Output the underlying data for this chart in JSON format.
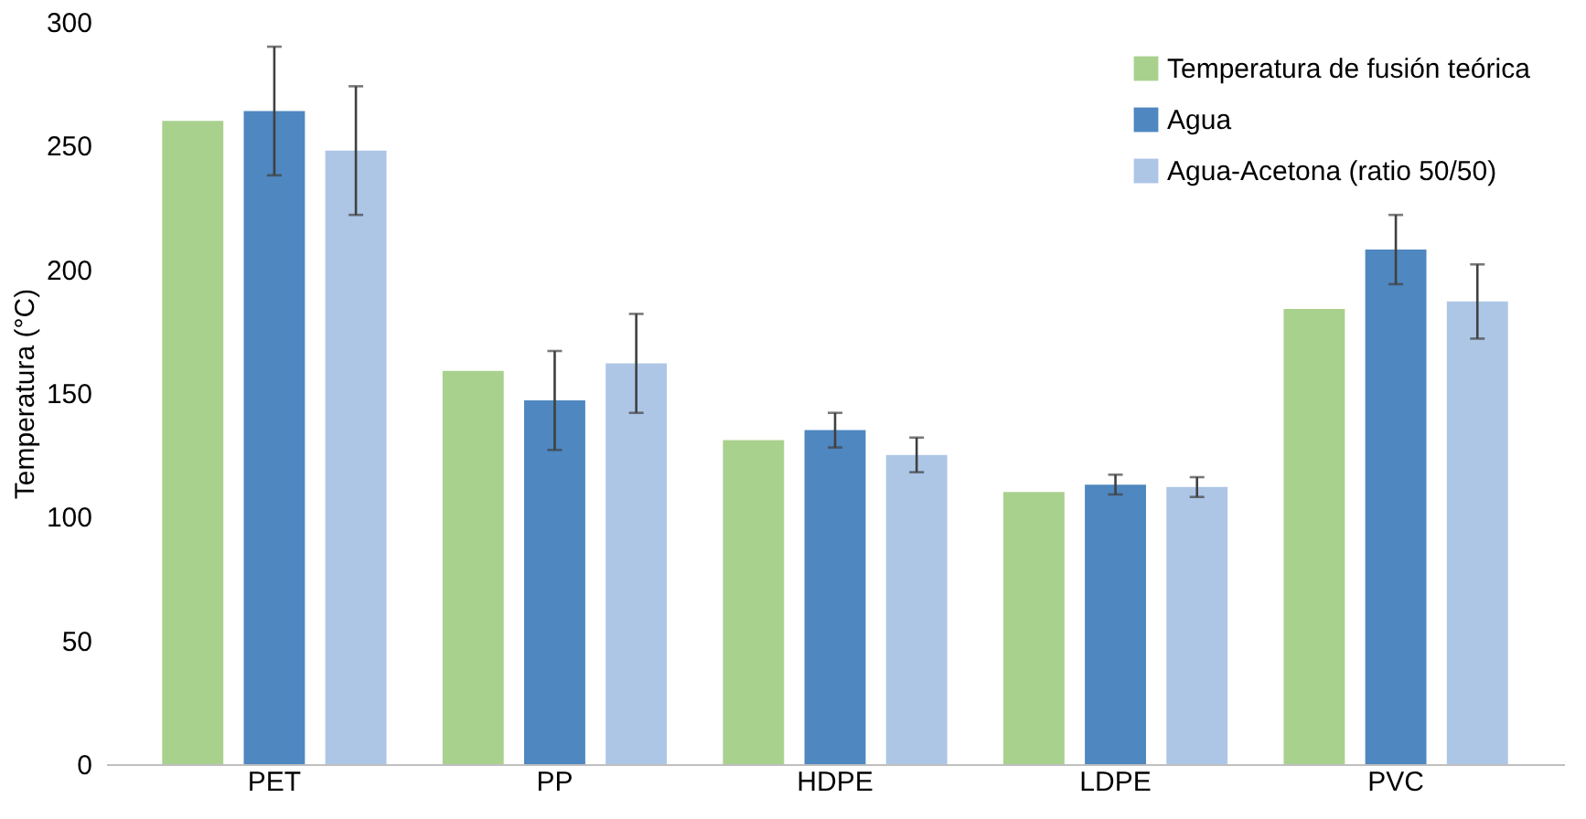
{
  "chart_data": {
    "type": "bar",
    "ylabel": "Temperatura (°C)",
    "categories": [
      "PET",
      "PP",
      "HDPE",
      "LDPE",
      "PVC"
    ],
    "series": [
      {
        "name": "Temperatura de fusión teórica",
        "color": "#a9d18e",
        "values": [
          260,
          159,
          131,
          110,
          184
        ]
      },
      {
        "name": "Agua",
        "color": "#4f87c0",
        "values": [
          264,
          147,
          135,
          113,
          208
        ],
        "errors": [
          26,
          20,
          7,
          4,
          14
        ]
      },
      {
        "name": "Agua-Acetona (ratio 50/50)",
        "color": "#adc6e6",
        "values": [
          248,
          162,
          125,
          112,
          187
        ],
        "errors": [
          26,
          20,
          7,
          4,
          15
        ]
      }
    ],
    "ylim": [
      0,
      300
    ],
    "yticks": [
      0,
      50,
      100,
      150,
      200,
      250,
      300
    ],
    "grid": false,
    "legend": "top right"
  }
}
